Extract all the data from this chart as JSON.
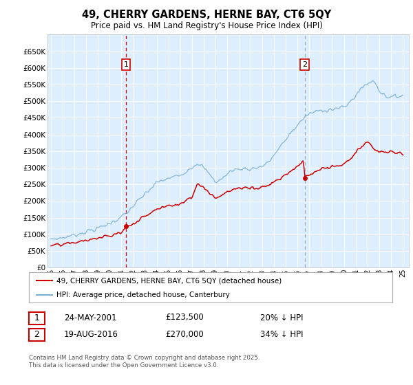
{
  "title": "49, CHERRY GARDENS, HERNE BAY, CT6 5QY",
  "subtitle": "Price paid vs. HM Land Registry's House Price Index (HPI)",
  "legend_label1": "49, CHERRY GARDENS, HERNE BAY, CT6 5QY (detached house)",
  "legend_label2": "HPI: Average price, detached house, Canterbury",
  "annotation1_label": "1",
  "annotation1_date": "24-MAY-2001",
  "annotation1_price": "£123,500",
  "annotation1_hpi": "20% ↓ HPI",
  "annotation2_label": "2",
  "annotation2_date": "19-AUG-2016",
  "annotation2_price": "£270,000",
  "annotation2_hpi": "34% ↓ HPI",
  "footer": "Contains HM Land Registry data © Crown copyright and database right 2025.\nThis data is licensed under the Open Government Licence v3.0.",
  "ylim": [
    0,
    700000
  ],
  "yticks": [
    0,
    50000,
    100000,
    150000,
    200000,
    250000,
    300000,
    350000,
    400000,
    450000,
    500000,
    550000,
    600000,
    650000
  ],
  "hpi_color": "#7aafd4",
  "price_color": "#cc0000",
  "vline1_color": "#dd0000",
  "vline2_color": "#aaaaaa",
  "bg_color": "#ddeeff",
  "grid_color": "#ffffff",
  "annotation_box_color": "#cc0000",
  "sale1_year": 2001.39,
  "sale1_price": 123500,
  "sale2_year": 2016.63,
  "sale2_price": 270000,
  "xlim_start": 1994.7,
  "xlim_end": 2025.5
}
